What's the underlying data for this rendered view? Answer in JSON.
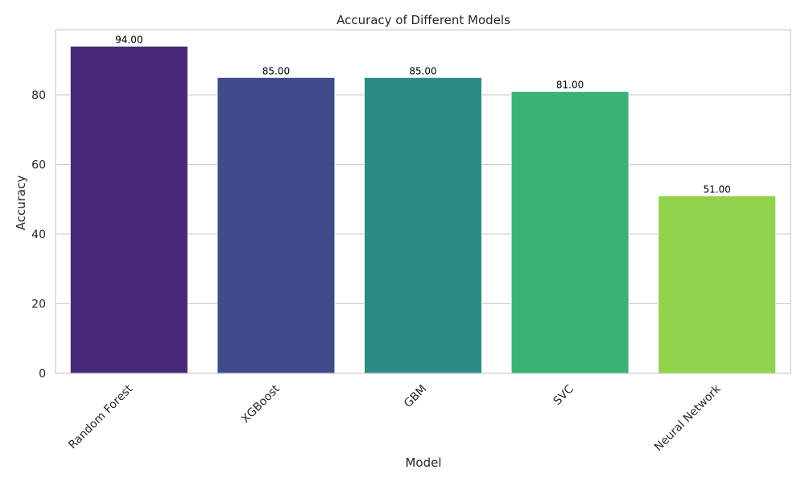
{
  "chart_data": {
    "type": "bar",
    "title": "Accuracy of Different Models",
    "xlabel": "Model",
    "ylabel": "Accuracy",
    "categories": [
      "Random Forest",
      "XGBoost",
      "GBM",
      "SVC",
      "Neural Network"
    ],
    "values": [
      94,
      85,
      85,
      81,
      51
    ],
    "value_labels": [
      "94.00",
      "85.00",
      "85.00",
      "81.00",
      "51.00"
    ],
    "colors": [
      "#482878",
      "#3e4a89",
      "#2a8c82",
      "#3cb375",
      "#8fd34c"
    ],
    "ylim": [
      0,
      98.7
    ],
    "yticks": [
      0,
      20,
      40,
      60,
      80
    ],
    "grid": true,
    "legend": "none"
  }
}
